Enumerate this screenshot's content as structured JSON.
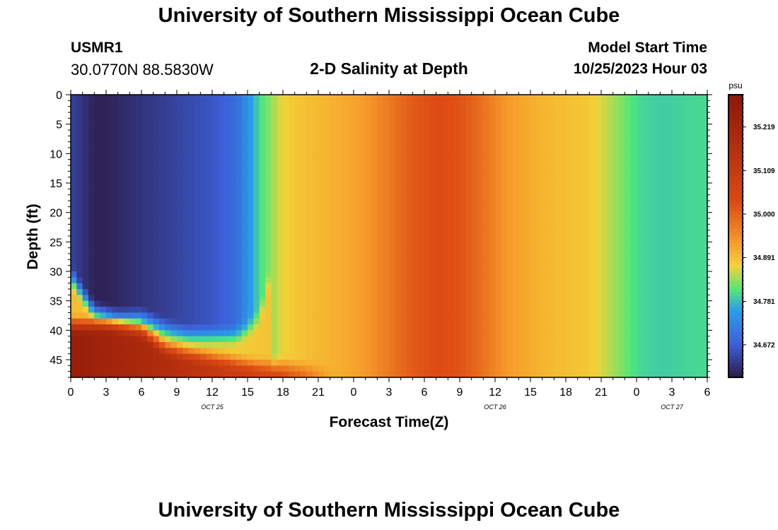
{
  "header": {
    "title": "University of Southern Mississippi Ocean Cube",
    "station_id": "USMR1",
    "coordinates": "30.0770N  88.5830W",
    "chart_title": "2-D Salinity at Depth",
    "model_start_label": "Model Start Time",
    "model_start_time": "10/25/2023 Hour 03"
  },
  "footer": {
    "title": "University of Southern Mississippi Ocean Cube"
  },
  "chart_data": {
    "type": "heatmap",
    "title": "2-D Salinity at Depth",
    "xlabel": "Forecast Time(Z)",
    "ylabel": "Depth (ft)",
    "x_range_hours": [
      0,
      54
    ],
    "x_ticks": [
      {
        "h": 0,
        "label": "0"
      },
      {
        "h": 3,
        "label": "3"
      },
      {
        "h": 6,
        "label": "6"
      },
      {
        "h": 9,
        "label": "9"
      },
      {
        "h": 12,
        "label": "12"
      },
      {
        "h": 15,
        "label": "15"
      },
      {
        "h": 18,
        "label": "18"
      },
      {
        "h": 21,
        "label": "21"
      },
      {
        "h": 24,
        "label": "0"
      },
      {
        "h": 27,
        "label": "3"
      },
      {
        "h": 30,
        "label": "6"
      },
      {
        "h": 33,
        "label": "9"
      },
      {
        "h": 36,
        "label": "12"
      },
      {
        "h": 39,
        "label": "15"
      },
      {
        "h": 42,
        "label": "18"
      },
      {
        "h": 45,
        "label": "21"
      },
      {
        "h": 48,
        "label": "0"
      },
      {
        "h": 51,
        "label": "3"
      },
      {
        "h": 54,
        "label": "6"
      }
    ],
    "date_labels": [
      {
        "h": 12,
        "label": "OCT 25"
      },
      {
        "h": 36,
        "label": "OCT 26"
      },
      {
        "h": 51,
        "label": "OCT 27"
      }
    ],
    "y_range_ft": [
      0,
      48
    ],
    "y_ticks": [
      0,
      5,
      10,
      15,
      20,
      25,
      30,
      35,
      40,
      45
    ],
    "colorbar": {
      "unit": "psu",
      "range": [
        34.59,
        35.3
      ],
      "ticks": [
        34.672,
        34.781,
        34.891,
        35.0,
        35.109,
        35.219
      ],
      "tick_labels": [
        "34.672",
        "34.781",
        "34.891",
        "35.000",
        "35.109",
        "35.219"
      ]
    },
    "surface_salinity_by_hour": [
      [
        0,
        34.64
      ],
      [
        2,
        34.6
      ],
      [
        3,
        34.6
      ],
      [
        6,
        34.62
      ],
      [
        9,
        34.64
      ],
      [
        12,
        34.66
      ],
      [
        14,
        34.69
      ],
      [
        15,
        34.74
      ],
      [
        16,
        34.8
      ],
      [
        18,
        34.87
      ],
      [
        20,
        34.89
      ],
      [
        23,
        34.91
      ],
      [
        25,
        34.93
      ],
      [
        27,
        34.97
      ],
      [
        29,
        35.01
      ],
      [
        31,
        35.03
      ],
      [
        33,
        35.02
      ],
      [
        35,
        34.98
      ],
      [
        37,
        34.93
      ],
      [
        40,
        34.9
      ],
      [
        42,
        34.89
      ],
      [
        44,
        34.88
      ],
      [
        46,
        34.84
      ],
      [
        48,
        34.8
      ],
      [
        50,
        34.79
      ],
      [
        54,
        34.8
      ]
    ],
    "bottom_salinity_by_hour": [
      [
        0,
        35.26
      ],
      [
        4,
        35.22
      ],
      [
        8,
        35.18
      ],
      [
        12,
        35.12
      ],
      [
        16,
        35.07
      ],
      [
        18,
        35.03
      ],
      [
        20,
        34.99
      ],
      [
        22,
        34.93
      ],
      [
        24,
        34.91
      ]
    ],
    "halocline_depth_ft_by_hour": [
      [
        0,
        31
      ],
      [
        2,
        37
      ],
      [
        4,
        38
      ],
      [
        6,
        38
      ],
      [
        8,
        40
      ],
      [
        10,
        41
      ],
      [
        12,
        41
      ],
      [
        14,
        41
      ],
      [
        15,
        40
      ],
      [
        16,
        38
      ],
      [
        17,
        30
      ]
    ],
    "bottom_layer_depth_ft_by_hour": [
      [
        0,
        39
      ],
      [
        3,
        39
      ],
      [
        6,
        40
      ],
      [
        8,
        43
      ],
      [
        10,
        44
      ],
      [
        13,
        45
      ],
      [
        16,
        46
      ],
      [
        18,
        46
      ],
      [
        20,
        46.5
      ],
      [
        21,
        47
      ]
    ],
    "colors": {
      "dark_purple": "#2d1a45",
      "blue": "#3c5ed6",
      "cyan": "#2a9fea",
      "green": "#52e878",
      "yellow": "#f4d238",
      "orange": "#f59a2a",
      "red_orange": "#dd4a14",
      "dark_red": "#8f1808"
    }
  }
}
